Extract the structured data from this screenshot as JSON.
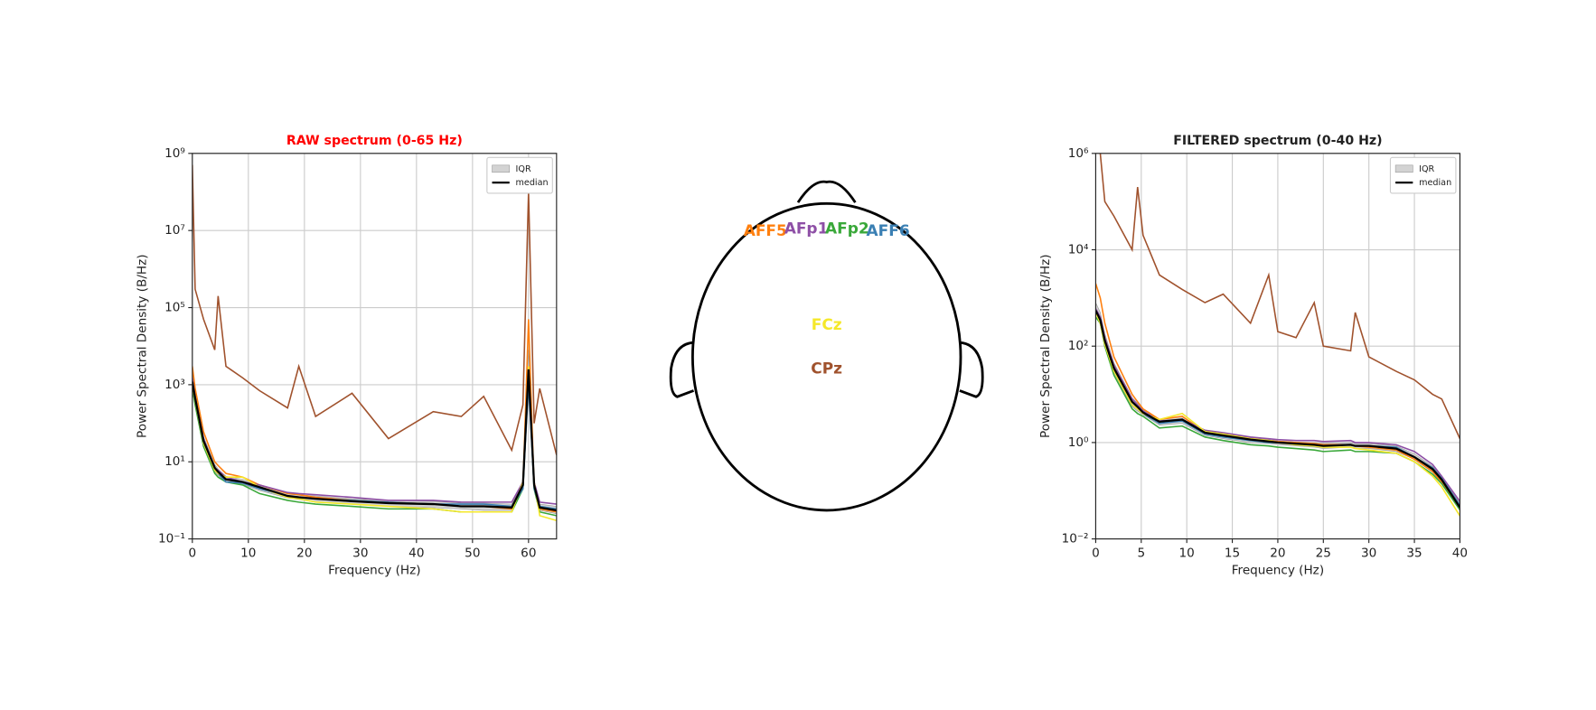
{
  "chart_data": [
    {
      "type": "line",
      "title": "RAW spectrum (0-65 Hz)",
      "title_color": "#ff0000",
      "xlabel": "Frequency (Hz)",
      "ylabel": "Power Spectral Density (B/Hz)",
      "log_y": true,
      "grid": true,
      "legend": "upper right",
      "xlim": [
        0,
        65
      ],
      "xticks": [
        0,
        10,
        20,
        30,
        40,
        50,
        60
      ],
      "ylim": [
        0.1,
        1000000000
      ],
      "yticks": [
        {
          "value": 0.1,
          "label": "10⁻¹"
        },
        {
          "value": 10,
          "label": "10¹"
        },
        {
          "value": 1000,
          "label": "10³"
        },
        {
          "value": 100000,
          "label": "10⁵"
        },
        {
          "value": 10000000,
          "label": "10⁷"
        },
        {
          "value": 1000000000,
          "label": "10⁹"
        }
      ],
      "x": [
        0,
        0.5,
        2,
        4,
        4.6,
        6,
        9,
        12,
        17,
        19,
        22,
        28.5,
        35,
        43,
        48,
        52,
        57,
        59,
        60,
        61,
        62,
        65
      ],
      "bands": [
        {
          "name": "IQR",
          "color": "#d3d3d3",
          "low": [
            900,
            350,
            28,
            5.5,
            4.5,
            3,
            2.6,
            1.8,
            1.15,
            1.05,
            0.9,
            0.8,
            0.7,
            0.65,
            0.6,
            0.55,
            0.55,
            2,
            1500,
            2,
            0.55,
            0.45
          ],
          "high": [
            2000,
            600,
            45,
            8.5,
            6.5,
            4.2,
            3.5,
            2.5,
            1.5,
            1.4,
            1.3,
            1.1,
            1,
            0.95,
            0.85,
            0.85,
            0.8,
            3,
            8000,
            3,
            0.8,
            0.7
          ]
        }
      ],
      "series": [
        {
          "color": "#ff7f0e",
          "values": [
            3000,
            800,
            60,
            10,
            8,
            5,
            4,
            2.5,
            1.5,
            1.4,
            1.2,
            1,
            0.9,
            0.8,
            0.7,
            0.7,
            0.6,
            2,
            50000,
            2,
            0.6,
            0.5
          ]
        },
        {
          "color": "#8e4fa6",
          "values": [
            1500,
            500,
            40,
            7,
            6,
            4,
            3,
            2.5,
            1.6,
            1.5,
            1.4,
            1.2,
            1,
            1,
            0.9,
            0.9,
            0.9,
            3,
            2000,
            3,
            0.9,
            0.8
          ]
        },
        {
          "color": "#3aa83a",
          "values": [
            800,
            300,
            25,
            5,
            4,
            3,
            2.5,
            1.5,
            1,
            0.9,
            0.8,
            0.7,
            0.6,
            0.6,
            0.5,
            0.5,
            0.5,
            2,
            1500,
            2,
            0.5,
            0.4
          ]
        },
        {
          "color": "#3a7fb3",
          "values": [
            1000,
            400,
            30,
            6,
            5,
            3,
            2.8,
            2,
            1.3,
            1.2,
            1.1,
            1,
            0.9,
            0.8,
            0.8,
            0.8,
            0.7,
            2,
            1000,
            2,
            0.7,
            0.6
          ]
        },
        {
          "color": "#f5e829",
          "values": [
            1000,
            400,
            30,
            6,
            5,
            4,
            4,
            2.2,
            1.2,
            1.1,
            0.9,
            0.8,
            0.7,
            0.6,
            0.5,
            0.5,
            0.5,
            3,
            3000,
            3,
            0.4,
            0.3
          ]
        },
        {
          "color": "#a0522d",
          "values": [
            500000000,
            300000,
            50000,
            8000,
            200000,
            3000,
            1500,
            700,
            250,
            3000,
            150,
            600,
            40,
            200,
            150,
            500,
            20,
            300,
            100000000,
            100,
            800,
            15
          ]
        },
        {
          "name": "median",
          "color": "#000000",
          "values": [
            1200,
            450,
            35,
            7,
            5.5,
            3.5,
            3,
            2.2,
            1.3,
            1.2,
            1.1,
            0.95,
            0.85,
            0.8,
            0.7,
            0.7,
            0.65,
            2.5,
            2500,
            2.5,
            0.65,
            0.55
          ]
        }
      ]
    },
    {
      "type": "line",
      "title": "FILTERED spectrum (0-40 Hz)",
      "title_color": "#222222",
      "xlabel": "Frequency (Hz)",
      "ylabel": "Power Spectral Density (B/Hz)",
      "log_y": true,
      "grid": true,
      "legend": "upper right",
      "xlim": [
        0,
        40
      ],
      "xticks": [
        0,
        5,
        10,
        15,
        20,
        25,
        30,
        35,
        40
      ],
      "ylim": [
        0.01,
        1000000
      ],
      "yticks": [
        {
          "value": 0.01,
          "label": "10⁻²"
        },
        {
          "value": 1,
          "label": "10⁰"
        },
        {
          "value": 100,
          "label": "10²"
        },
        {
          "value": 10000,
          "label": "10⁴"
        },
        {
          "value": 1000000,
          "label": "10⁶"
        }
      ],
      "x": [
        0,
        0.5,
        1,
        2,
        4,
        4.6,
        5.2,
        7,
        9.5,
        12,
        14,
        17,
        19,
        20,
        22,
        24,
        25,
        28,
        28.5,
        30,
        33,
        35,
        37,
        38,
        40
      ],
      "bands": [
        {
          "name": "IQR",
          "color": "#d3d3d3",
          "low": [
            480,
            320,
            110,
            28,
            5.5,
            4.5,
            3.8,
            2.3,
            2.5,
            1.4,
            1.2,
            1,
            0.95,
            0.9,
            0.85,
            0.8,
            0.75,
            0.8,
            0.75,
            0.75,
            0.65,
            0.45,
            0.24,
            0.15,
            0.04
          ],
          "high": [
            800,
            500,
            180,
            45,
            8.5,
            6.5,
            4.8,
            3,
            3.5,
            1.75,
            1.55,
            1.25,
            1.15,
            1.08,
            1.02,
            1,
            0.95,
            1,
            0.95,
            0.95,
            0.85,
            0.58,
            0.32,
            0.19,
            0.055
          ]
        }
      ],
      "series": [
        {
          "color": "#ff7f0e",
          "values": [
            2000,
            1000,
            300,
            60,
            10,
            7,
            5,
            3,
            3.5,
            1.6,
            1.5,
            1.2,
            1.1,
            1.05,
            1,
            0.95,
            0.9,
            0.9,
            0.85,
            0.8,
            0.7,
            0.45,
            0.25,
            0.15,
            0.04
          ]
        },
        {
          "color": "#8e4fa6",
          "values": [
            600,
            400,
            150,
            40,
            8,
            6,
            4.5,
            2.8,
            3,
            1.8,
            1.6,
            1.3,
            1.2,
            1.15,
            1.1,
            1.1,
            1.05,
            1.1,
            1,
            1,
            0.9,
            0.65,
            0.35,
            0.2,
            0.06
          ]
        },
        {
          "color": "#3aa83a",
          "values": [
            400,
            300,
            100,
            25,
            5,
            4,
            3.5,
            2,
            2.2,
            1.3,
            1.1,
            0.9,
            0.85,
            0.8,
            0.75,
            0.7,
            0.65,
            0.7,
            0.65,
            0.65,
            0.6,
            0.4,
            0.22,
            0.14,
            0.04
          ]
        },
        {
          "color": "#3a7fb3",
          "values": [
            500,
            350,
            120,
            30,
            6,
            5,
            4,
            2.5,
            2.8,
            1.5,
            1.3,
            1.1,
            1,
            1,
            0.95,
            0.9,
            0.85,
            0.9,
            0.85,
            0.85,
            0.8,
            0.5,
            0.3,
            0.18,
            0.05
          ]
        },
        {
          "color": "#f5e829",
          "values": [
            500,
            300,
            110,
            30,
            6,
            5,
            4,
            3,
            4,
            1.7,
            1.5,
            1.2,
            1.1,
            1,
            0.9,
            0.85,
            0.8,
            0.8,
            0.75,
            0.7,
            0.6,
            0.4,
            0.2,
            0.12,
            0.03
          ]
        },
        {
          "color": "#a0522d",
          "values": [
            2000000,
            1000000,
            100000,
            50000,
            10000,
            200000,
            20000,
            3000,
            1500,
            800,
            1200,
            300,
            3000,
            200,
            150,
            800,
            100,
            80,
            500,
            60,
            30,
            20,
            10,
            8,
            1.2
          ]
        },
        {
          "name": "median",
          "color": "#000000",
          "values": [
            550,
            350,
            130,
            35,
            7,
            5.5,
            4.2,
            2.7,
            3,
            1.6,
            1.4,
            1.15,
            1.05,
            1,
            0.95,
            0.9,
            0.85,
            0.9,
            0.85,
            0.85,
            0.75,
            0.5,
            0.28,
            0.17,
            0.045
          ]
        }
      ]
    }
  ],
  "topomap": {
    "sensors": [
      {
        "label": "AFF5",
        "color": "#ff7f0e"
      },
      {
        "label": "AFp1",
        "color": "#8e4fa6"
      },
      {
        "label": "AFp2",
        "color": "#3aa83a"
      },
      {
        "label": "AFF6",
        "color": "#3a7fb3"
      },
      {
        "label": "FCz",
        "color": "#f5e829"
      },
      {
        "label": "CPz",
        "color": "#a0522d"
      }
    ]
  }
}
